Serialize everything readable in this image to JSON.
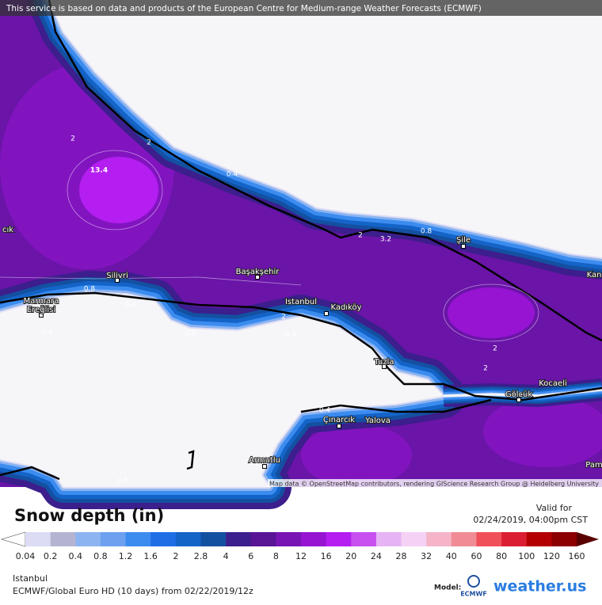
{
  "banner": "This service is based on data and products of the European Centre for Medium-range Weather Forecasts (ECMWF)",
  "map": {
    "cities": [
      "Silivri",
      "Başakşehir",
      "Istanbul",
      "Kadıköy",
      "Marmara",
      "Ereğlisi",
      "Tuzla",
      "Gölcük",
      "Kocaeli",
      "Yalova",
      "Çınarcık",
      "Armutlu",
      "Şile",
      "Kan",
      "Pam",
      "cık"
    ],
    "contour_labels": [
      "13.4",
      "2",
      "2",
      "0.4",
      "0.4",
      "0.8",
      "2",
      "3.2",
      "0.8",
      "0.6",
      "0.8",
      "0.4",
      "2",
      "2",
      "0.4",
      "0.8",
      "2"
    ],
    "attribution": "Map data © OpenStreetMap contributors, rendering GIScience Research Group @ Heidelberg University"
  },
  "legend": {
    "title": "Snow depth (in)",
    "valid_label": "Valid for",
    "valid_time": "02/24/2019, 04:00pm CST",
    "ticks": [
      "0.04",
      "0.2",
      "0.4",
      "0.8",
      "1.2",
      "1.6",
      "2",
      "2.8",
      "4",
      "6",
      "8",
      "12",
      "16",
      "20",
      "24",
      "28",
      "32",
      "40",
      "60",
      "80",
      "100",
      "120",
      "160"
    ],
    "colors": [
      "#dcdcf5",
      "#b4b4d2",
      "#8cb4f0",
      "#6ea0f0",
      "#3c8cf0",
      "#1e6ee6",
      "#1464c8",
      "#1450a0",
      "#3c1e8c",
      "#5a1496",
      "#7814b4",
      "#9614d2",
      "#b41ef0",
      "#c850f0",
      "#e6b4f5",
      "#f5d2f5",
      "#f5b4c8",
      "#f08c96",
      "#f0505a",
      "#dc1e32",
      "#b40000",
      "#8c0000"
    ],
    "under_color": "#ffffff",
    "over_color": "#5a0000"
  },
  "footer": {
    "location": "Istanbul",
    "model_run": "ECMWF/Global Euro HD (10 days) from 02/22/2019/12z",
    "model_label": "Model:",
    "model_logo": "ECMWF",
    "brand": "weather.us"
  }
}
